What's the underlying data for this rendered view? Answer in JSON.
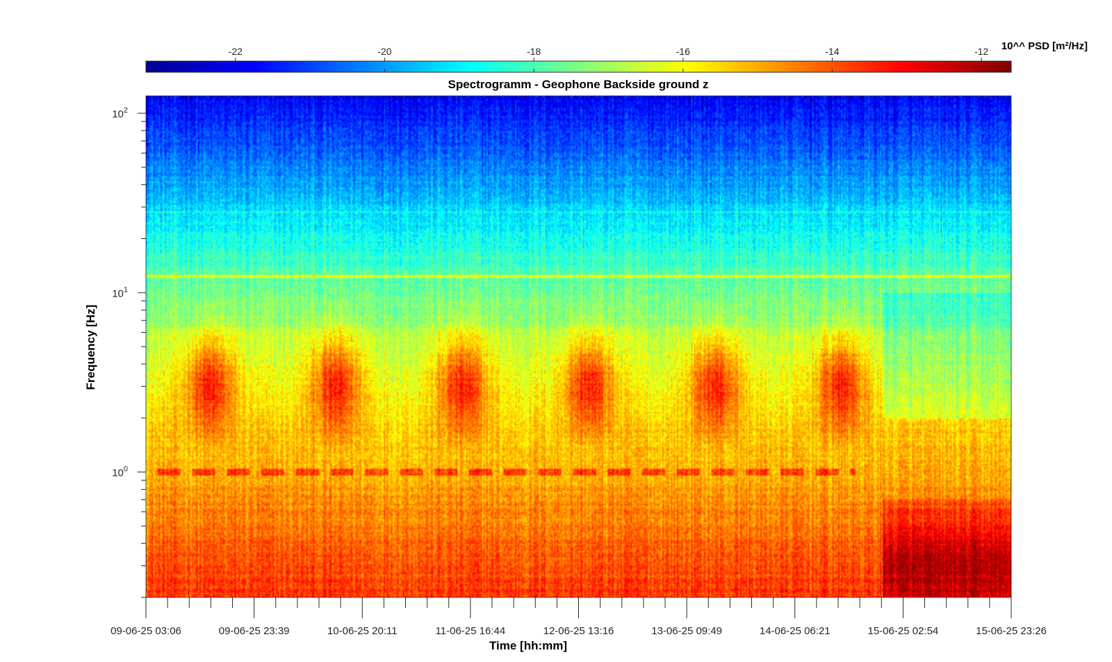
{
  "chart_data": {
    "type": "heatmap",
    "title": "Spectrogramm - Geophone Backside ground z",
    "xlabel": "Time [hh:mm]",
    "ylabel": "Frequency [Hz]",
    "x_ticks": [
      "09-06-25 03:06",
      "09-06-25 23:39",
      "10-06-25 20:11",
      "11-06-25 16:44",
      "12-06-25 13:16",
      "13-06-25 09:49",
      "14-06-25 06:21",
      "15-06-25 02:54",
      "15-06-25 23:26"
    ],
    "x_range": [
      "09-06-25 03:06",
      "15-06-25 23:26"
    ],
    "y_scale": "log",
    "y_range": [
      0.2,
      125
    ],
    "y_ticks": [
      1,
      10,
      100
    ],
    "y_tick_labels": [
      {
        "base": "10",
        "exp": "0"
      },
      {
        "base": "10",
        "exp": "1"
      },
      {
        "base": "10",
        "exp": "2"
      }
    ],
    "colorbar": {
      "label": "10^^ PSD [m²/Hz]",
      "range": [
        -23.2,
        -11.6
      ],
      "ticks": [
        -22,
        -20,
        -18,
        -16,
        -14,
        -12
      ],
      "tick_labels": [
        "-22",
        "-20",
        "-18",
        "-16",
        "-14",
        "-12"
      ],
      "colormap": "jet",
      "placement": "top"
    },
    "grid": false
  }
}
